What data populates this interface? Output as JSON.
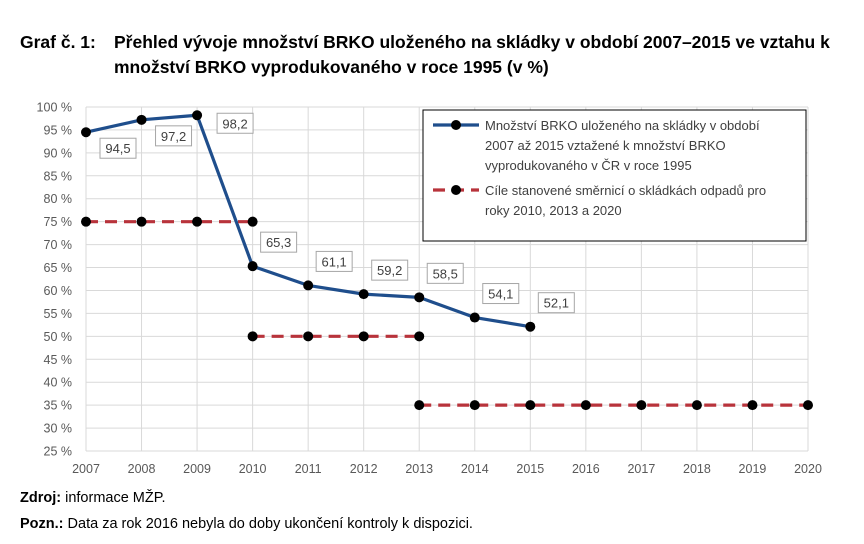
{
  "title": {
    "prefix": "Graf č. 1:",
    "text": "Přehled vývoje množství BRKO uloženého na skládky v období 2007–2015 ve vztahu k množství BRKO vyprodukovaného v roce 1995 (v %)"
  },
  "colors": {
    "series_main": "#1f4e8c",
    "series_targets": "#b8333b",
    "markers": "#000000",
    "grid": "#d9d9d9"
  },
  "footer": {
    "source_label": "Zdroj:",
    "source_text": "informace MŽP.",
    "note_label": "Pozn.:",
    "note_text": "Data za rok 2016 nebyla do doby ukončení kontroly k dispozici."
  },
  "chart_data": {
    "type": "line",
    "x": [
      "2007",
      "2008",
      "2009",
      "2010",
      "2011",
      "2012",
      "2013",
      "2014",
      "2015",
      "2016",
      "2017",
      "2018",
      "2019",
      "2020"
    ],
    "ylim": [
      25,
      100
    ],
    "yticks": [
      25,
      30,
      35,
      40,
      45,
      50,
      55,
      60,
      65,
      70,
      75,
      80,
      85,
      90,
      95,
      100
    ],
    "ytick_labels": [
      "25 %",
      "30 %",
      "35 %",
      "40 %",
      "45 %",
      "50 %",
      "55 %",
      "60 %",
      "65 %",
      "70 %",
      "75 %",
      "80 %",
      "85 %",
      "90 %",
      "95 %",
      "100 %"
    ],
    "grid": true,
    "legend_position": "top-right",
    "series": [
      {
        "name": "Množství BRKO uloženého na skládky v období 2007 až 2015 vztažené k množství BRKO vyprodukovaného v ČR v roce 1995",
        "legend_lines": [
          "Množství BRKO uloženého na skládky v období",
          "2007 až 2015 vztažené k množství BRKO",
          "vyprodukovaného v ČR v roce 1995"
        ],
        "style": "solid",
        "points": [
          {
            "x": "2007",
            "y": 94.5,
            "label": "94,5"
          },
          {
            "x": "2008",
            "y": 97.2,
            "label": "97,2"
          },
          {
            "x": "2009",
            "y": 98.2,
            "label": "98,2"
          },
          {
            "x": "2010",
            "y": 65.3,
            "label": "65,3"
          },
          {
            "x": "2011",
            "y": 61.1,
            "label": "61,1"
          },
          {
            "x": "2012",
            "y": 59.2,
            "label": "59,2"
          },
          {
            "x": "2013",
            "y": 58.5,
            "label": "58,5"
          },
          {
            "x": "2014",
            "y": 54.1,
            "label": "54,1"
          },
          {
            "x": "2015",
            "y": 52.1,
            "label": "52,1"
          }
        ]
      },
      {
        "name": "Cíle stanovené směrnicí o skládkách odpadů pro roky 2010, 2013 a 2020",
        "legend_lines": [
          "Cíle stanovené směrnicí o skládkách odpadů pro",
          "roky 2010, 2013 a 2020"
        ],
        "style": "dashed",
        "segments": [
          {
            "x": [
              "2007",
              "2008",
              "2009",
              "2010"
            ],
            "y": 75
          },
          {
            "x": [
              "2010",
              "2011",
              "2012",
              "2013"
            ],
            "y": 50
          },
          {
            "x": [
              "2013",
              "2014",
              "2015",
              "2016",
              "2017",
              "2018",
              "2019",
              "2020"
            ],
            "y": 35
          }
        ]
      }
    ]
  }
}
